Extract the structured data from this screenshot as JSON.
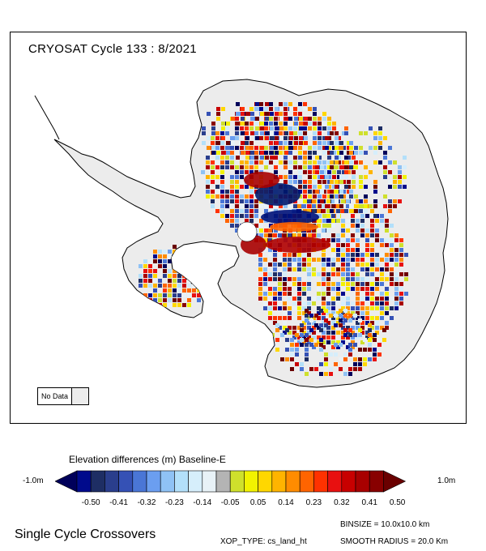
{
  "map": {
    "title": "CRYOSAT Cycle 133 : 8/2021",
    "nodata_label": "No Data",
    "land_color": "#ececec",
    "coast_color": "#000000"
  },
  "colorbar": {
    "title": "Elevation differences (m) Baseline-E",
    "left_label": "-1.0m",
    "right_label": "1.0m",
    "tick_labels": [
      "-0.50",
      "-0.41",
      "-0.32",
      "-0.23",
      "-0.14",
      "-0.05",
      "0.05",
      "0.14",
      "0.23",
      "0.32",
      "0.41",
      "0.50"
    ],
    "colors": [
      "#00005a",
      "#000a8c",
      "#1e2e64",
      "#2a3e8c",
      "#3551b5",
      "#4a76d6",
      "#6b9ef0",
      "#8fc2f5",
      "#b3e0fa",
      "#d6eefb",
      "#e8f2f7",
      "#b4b4b4",
      "#cfe02c",
      "#f2f200",
      "#ffd700",
      "#ffb400",
      "#ff8c00",
      "#ff6400",
      "#ff3200",
      "#e81010",
      "#c80000",
      "#a80000",
      "#880000",
      "#6a0000"
    ]
  },
  "footer": {
    "left": "Single Cycle Crossovers",
    "binsize": "BINSIZE = 10.0x10.0 km",
    "xop_type": "XOP_TYPE: cs_land_ht",
    "smooth_radius": "SMOOTH RADIUS = 20.0 Km"
  }
}
